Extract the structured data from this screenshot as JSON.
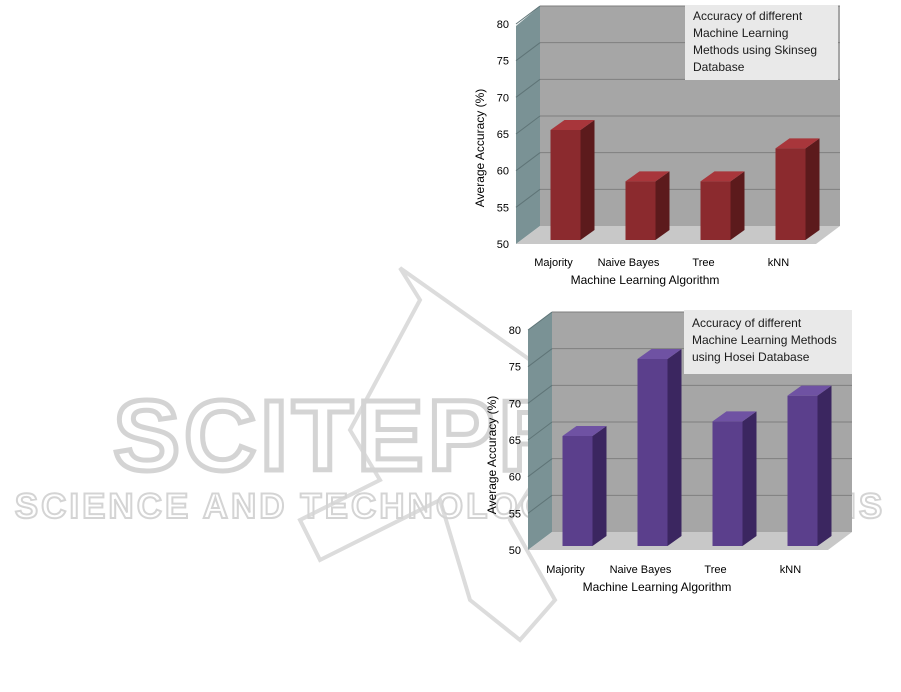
{
  "watermark": {
    "title": "SCITEPRESS",
    "subtitle": "SCIENCE AND TECHNOLOGY PUBLICATIONS"
  },
  "chart_data": [
    {
      "type": "bar",
      "title": "",
      "annotation_lines": [
        "Accuracy of different",
        "Machine Learning",
        "Methods using Skinseg",
        "Database"
      ],
      "xlabel": "Machine Learning Algorithm",
      "ylabel": "Average Accuracy (%)",
      "categories": [
        "Majority",
        "Naive Bayes",
        "Tree",
        "kNN"
      ],
      "values": [
        65,
        58,
        58,
        62.5
      ],
      "ylim": [
        50,
        80
      ],
      "yticks": [
        "50",
        "55",
        "60",
        "65",
        "70",
        "75",
        "80"
      ],
      "grid": true,
      "bar_color": "#8b2a2e",
      "bar_side_color": "#5c1a1c",
      "bar_top_color": "#a8363b"
    },
    {
      "type": "bar",
      "title": "",
      "annotation_lines": [
        "Accuracy of different",
        "Machine Learning Methods",
        "using Hosei Database"
      ],
      "xlabel": "Machine Learning Algorithm",
      "ylabel": "Average Accuracy (%)",
      "categories": [
        "Majority",
        "Naive Bayes",
        "Tree",
        "kNN"
      ],
      "values": [
        65,
        75.5,
        67,
        70.5
      ],
      "ylim": [
        50,
        80
      ],
      "yticks": [
        "50",
        "55",
        "60",
        "65",
        "70",
        "75",
        "80"
      ],
      "grid": true,
      "bar_color": "#5b3f8c",
      "bar_side_color": "#3b2660",
      "bar_top_color": "#6f52a3"
    }
  ]
}
